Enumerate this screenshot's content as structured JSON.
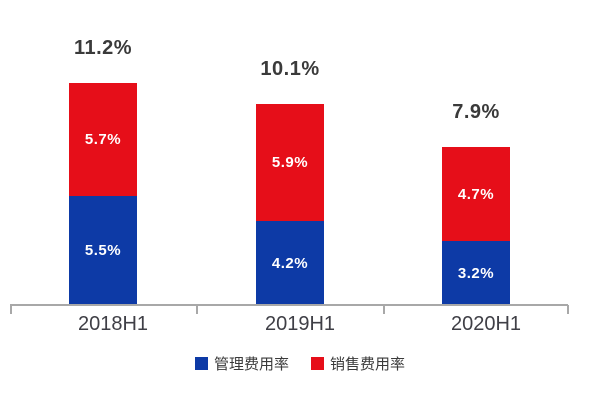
{
  "chart_data": {
    "type": "bar",
    "variant": "stacked-column",
    "title": "",
    "categories": [
      "2018H1",
      "2019H1",
      "2020H1"
    ],
    "series": [
      {
        "name": "管理费用率",
        "color": "#0d3aa6",
        "values": [
          5.5,
          4.2,
          3.2
        ],
        "labels": [
          "5.5%",
          "4.2%",
          "3.2%"
        ]
      },
      {
        "name": "销售费用率",
        "color": "#e60e19",
        "values": [
          5.7,
          5.9,
          4.7
        ],
        "labels": [
          "5.7%",
          "5.9%",
          "4.7%"
        ]
      }
    ],
    "totals": [
      11.2,
      10.1,
      7.9
    ],
    "total_labels": [
      "11.2%",
      "10.1%",
      "7.9%"
    ],
    "unit": "%",
    "ylim": [
      0,
      12
    ],
    "grid": false,
    "legend_position": "bottom",
    "colors": {
      "axis": "#a8a8a8",
      "category_label": "#3f3f46",
      "total_label": "#3a3a3a",
      "segment_label": "#ffffff",
      "background": "#ffffff"
    }
  }
}
